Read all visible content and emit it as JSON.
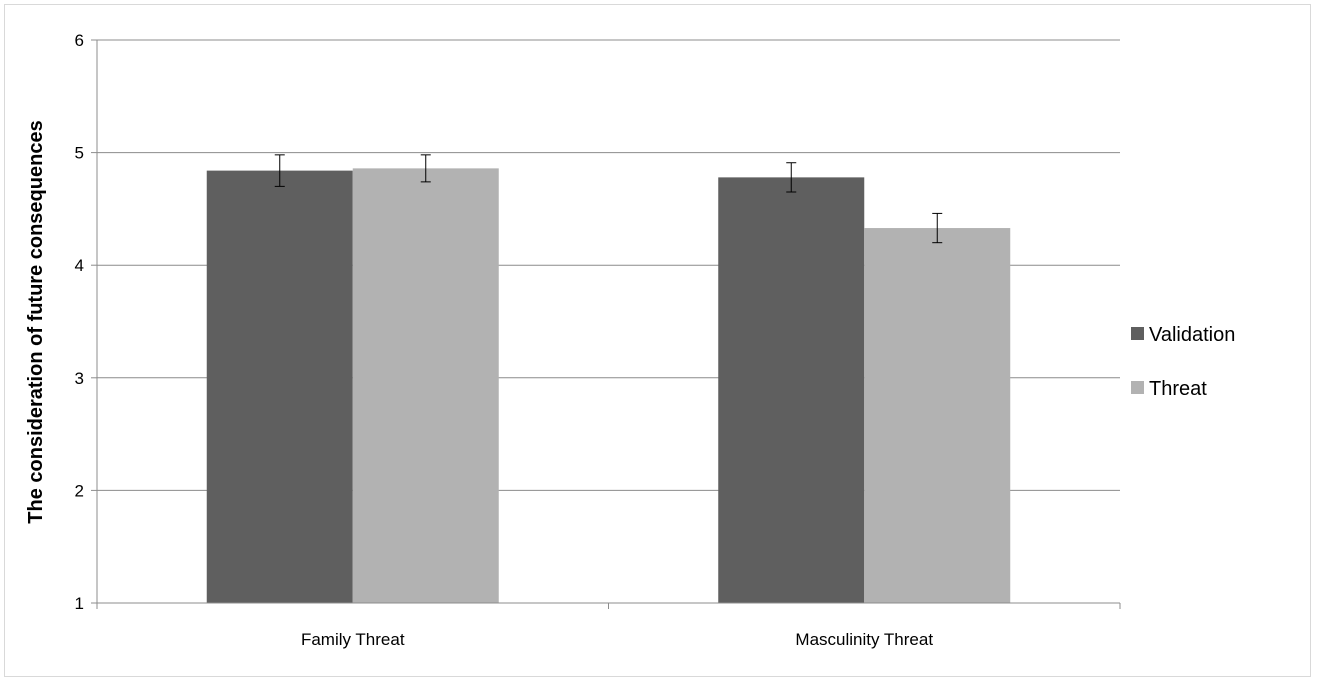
{
  "chart_data": {
    "type": "bar",
    "title": "",
    "xlabel": "",
    "ylabel": "The consideration of future consequences",
    "ylim": [
      1,
      6
    ],
    "yticks": [
      1,
      2,
      3,
      4,
      5,
      6
    ],
    "grid": true,
    "legend_position": "right",
    "categories": [
      "Family Threat",
      "Masculinity Threat"
    ],
    "series": [
      {
        "name": "Validation",
        "color": "#5f5f5f",
        "values": [
          4.84,
          4.78
        ],
        "error": [
          0.14,
          0.13
        ]
      },
      {
        "name": "Threat",
        "color": "#b2b2b2",
        "values": [
          4.86,
          4.33
        ],
        "error": [
          0.12,
          0.13
        ]
      }
    ]
  }
}
